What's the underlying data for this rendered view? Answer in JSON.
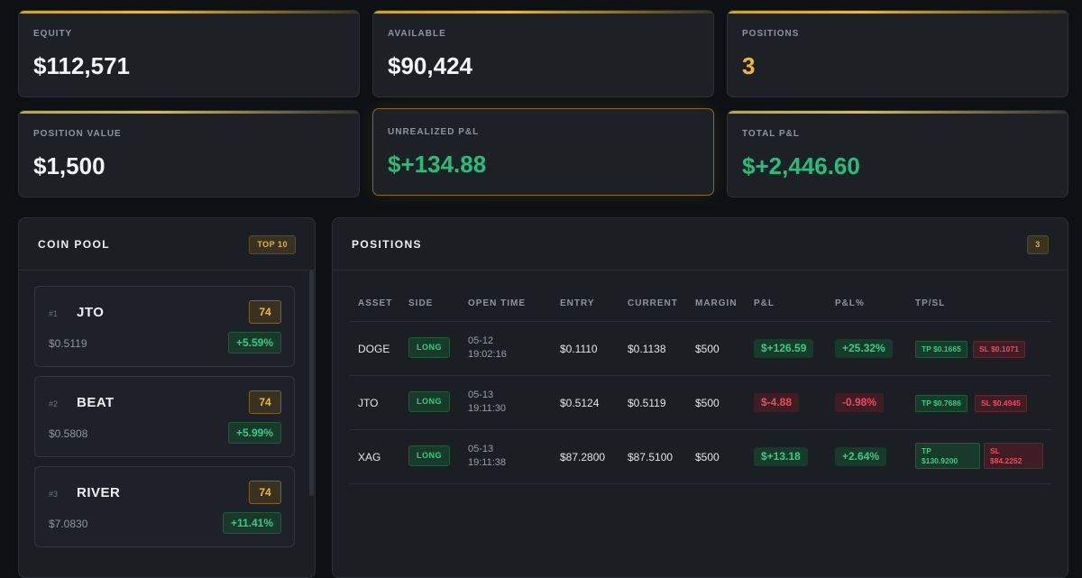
{
  "stats": [
    {
      "label": "EQUITY",
      "value": "$112,571"
    },
    {
      "label": "AVAILABLE",
      "value": "$90,424"
    },
    {
      "label": "POSITIONS",
      "value": "3"
    },
    {
      "label": "POSITION VALUE",
      "value": "$1,500"
    },
    {
      "label": "UNREALIZED P&L",
      "value": "$+134.88"
    },
    {
      "label": "TOTAL P&L",
      "value": "$+2,446.60"
    }
  ],
  "coin_pool": {
    "title": "COIN POOL",
    "badge": "TOP 10",
    "coins": [
      {
        "rank": "#1",
        "name": "JTO",
        "price": "$0.5119",
        "score": "74",
        "change": "+5.59%"
      },
      {
        "rank": "#2",
        "name": "BEAT",
        "price": "$0.5808",
        "score": "74",
        "change": "+5.99%"
      },
      {
        "rank": "#3",
        "name": "RIVER",
        "price": "$7.0830",
        "score": "74",
        "change": "+11.41%"
      }
    ]
  },
  "positions": {
    "title": "POSITIONS",
    "badge": "3",
    "columns": [
      "ASSET",
      "SIDE",
      "OPEN TIME",
      "ENTRY",
      "CURRENT",
      "MARGIN",
      "P&L",
      "P&L%",
      "TP/SL"
    ],
    "rows": [
      {
        "asset": "DOGE",
        "side": "LONG",
        "date": "05-12",
        "time": "19:02:16",
        "entry": "$0.1110",
        "current": "$0.1138",
        "margin": "$500",
        "pnl": "$+126.59",
        "pnl_pct": "+25.32%",
        "tp": "TP $0.1665",
        "sl": "SL $0.1071",
        "positive": true
      },
      {
        "asset": "JTO",
        "side": "LONG",
        "date": "05-13",
        "time": "19:11:30",
        "entry": "$0.5124",
        "current": "$0.5119",
        "margin": "$500",
        "pnl": "$-4.88",
        "pnl_pct": "-0.98%",
        "tp": "TP $0.7686",
        "sl": "SL $0.4945",
        "positive": false
      },
      {
        "asset": "XAG",
        "side": "LONG",
        "date": "05-13",
        "time": "19:11:38",
        "entry": "$87.2800",
        "current": "$87.5100",
        "margin": "$500",
        "pnl": "$+13.18",
        "pnl_pct": "+2.64%",
        "tp_label": "TP",
        "tp_value": "$130.9200",
        "sl_label": "SL",
        "sl_value": "$84.2252",
        "positive": true
      }
    ]
  }
}
